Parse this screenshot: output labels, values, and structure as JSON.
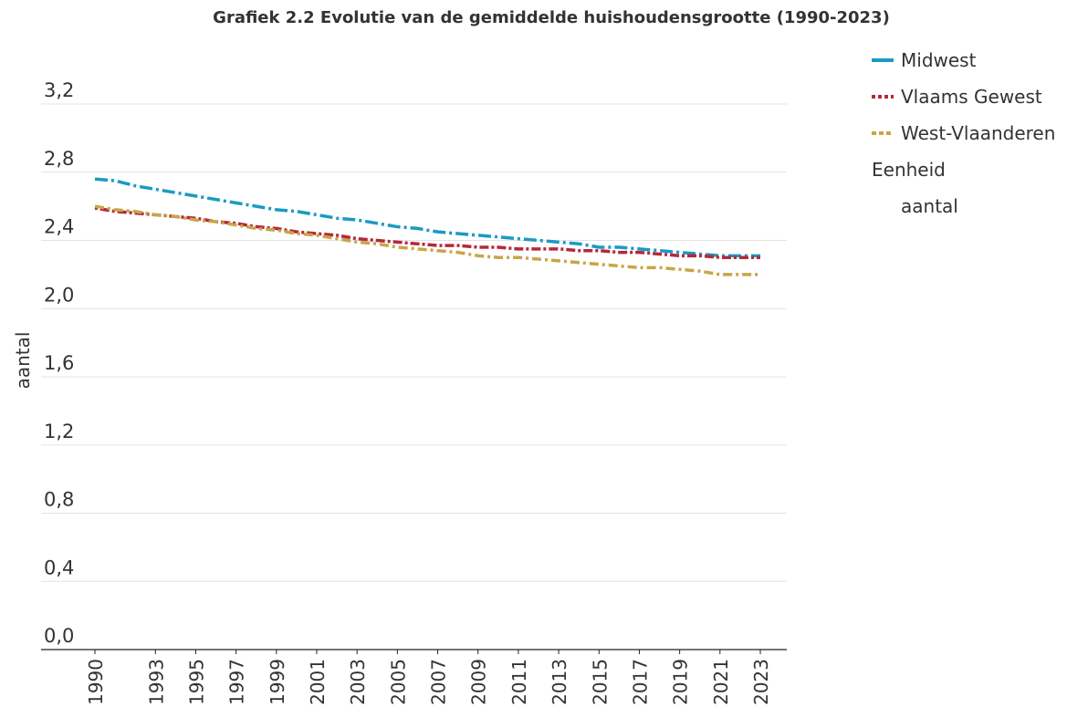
{
  "chart_data": {
    "type": "line",
    "title": "Grafiek 2.2 Evolutie van de gemiddelde huishoudensgrootte (1990-2023)",
    "ylabel": "aantal",
    "legend_title": "Eenheid",
    "legend_unit": "aantal",
    "legend": "right",
    "grid": true,
    "x": [
      1990,
      1991,
      1992,
      1993,
      1994,
      1995,
      1996,
      1997,
      1998,
      1999,
      2000,
      2001,
      2002,
      2003,
      2004,
      2005,
      2006,
      2007,
      2008,
      2009,
      2010,
      2011,
      2012,
      2013,
      2014,
      2015,
      2016,
      2017,
      2018,
      2019,
      2020,
      2021,
      2022,
      2023
    ],
    "xlim": [
      1990,
      2023
    ],
    "xticks": [
      1990,
      1993,
      1995,
      1997,
      1999,
      2001,
      2003,
      2005,
      2007,
      2009,
      2011,
      2013,
      2015,
      2017,
      2019,
      2021,
      2023
    ],
    "ylim": [
      0,
      3.2
    ],
    "yticks": [
      {
        "value": 0,
        "label": "0,0"
      },
      {
        "value": 0.4,
        "label": "0,4"
      },
      {
        "value": 0.8,
        "label": "0,8"
      },
      {
        "value": 1.2,
        "label": "1,2"
      },
      {
        "value": 1.6,
        "label": "1,6"
      },
      {
        "value": 2.0,
        "label": "2,0"
      },
      {
        "value": 2.4,
        "label": "2,4"
      },
      {
        "value": 2.8,
        "label": "2,8"
      },
      {
        "value": 3.2,
        "label": "3,2"
      }
    ],
    "series": [
      {
        "name": "Midwest",
        "color": "#1b9ac2",
        "dash": "14,4,3,4",
        "legend_dash": "none",
        "values": [
          2.76,
          2.75,
          2.72,
          2.7,
          2.68,
          2.66,
          2.64,
          2.62,
          2.6,
          2.58,
          2.57,
          2.55,
          2.53,
          2.52,
          2.5,
          2.48,
          2.47,
          2.45,
          2.44,
          2.43,
          2.42,
          2.41,
          2.4,
          2.39,
          2.38,
          2.36,
          2.36,
          2.35,
          2.34,
          2.33,
          2.32,
          2.31,
          2.31,
          2.31
        ]
      },
      {
        "name": "Vlaams Gewest",
        "color": "#b5283a",
        "dash": "3,3,10,3",
        "legend_dash": "4,3",
        "values": [
          2.59,
          2.57,
          2.56,
          2.55,
          2.54,
          2.53,
          2.51,
          2.5,
          2.48,
          2.47,
          2.45,
          2.44,
          2.43,
          2.41,
          2.4,
          2.39,
          2.38,
          2.37,
          2.37,
          2.36,
          2.36,
          2.35,
          2.35,
          2.35,
          2.34,
          2.34,
          2.33,
          2.33,
          2.32,
          2.31,
          2.31,
          2.3,
          2.3,
          2.3
        ]
      },
      {
        "name": "West-Vlaanderen",
        "color": "#c8a548",
        "dash": "10,4,3,4",
        "legend_dash": "5,3",
        "values": [
          2.6,
          2.58,
          2.57,
          2.55,
          2.54,
          2.52,
          2.51,
          2.49,
          2.47,
          2.46,
          2.44,
          2.43,
          2.41,
          2.39,
          2.38,
          2.36,
          2.35,
          2.34,
          2.33,
          2.31,
          2.3,
          2.3,
          2.29,
          2.28,
          2.27,
          2.26,
          2.25,
          2.24,
          2.24,
          2.23,
          2.22,
          2.2,
          2.2,
          2.2
        ]
      }
    ]
  }
}
